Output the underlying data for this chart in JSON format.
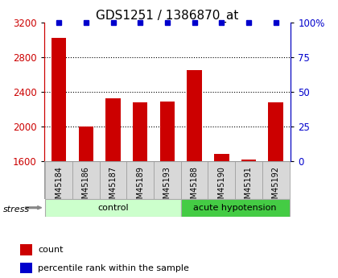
{
  "title": "GDS1251 / 1386870_at",
  "samples": [
    "GSM45184",
    "GSM45186",
    "GSM45187",
    "GSM45189",
    "GSM45193",
    "GSM45188",
    "GSM45190",
    "GSM45191",
    "GSM45192"
  ],
  "counts": [
    3020,
    2000,
    2320,
    2280,
    2290,
    2650,
    1680,
    1620,
    2280
  ],
  "percentiles": [
    100,
    100,
    100,
    100,
    100,
    100,
    100,
    100,
    100
  ],
  "group_info": [
    {
      "label": "control",
      "light_color": "#ccffcc",
      "dark_color": "#ccffcc",
      "start": 0,
      "end": 4
    },
    {
      "label": "acute hypotension",
      "light_color": "#55dd55",
      "dark_color": "#55dd55",
      "start": 5,
      "end": 8
    }
  ],
  "bar_color": "#cc0000",
  "percentile_color": "#0000cc",
  "ylim_left": [
    1600,
    3200
  ],
  "ylim_right": [
    0,
    100
  ],
  "yticks_left": [
    1600,
    2000,
    2400,
    2800,
    3200
  ],
  "yticks_right": [
    0,
    25,
    50,
    75,
    100
  ],
  "stress_label": "stress",
  "legend_count_label": "count",
  "legend_percentile_label": "percentile rank within the sample",
  "background_color": "#ffffff",
  "tick_label_color_left": "#cc0000",
  "tick_label_color_right": "#0000cc",
  "title_fontsize": 11,
  "axis_fontsize": 8.5,
  "legend_fontsize": 8,
  "sample_label_fontsize": 7,
  "bar_width": 0.55,
  "xlim": [
    -0.55,
    8.55
  ]
}
